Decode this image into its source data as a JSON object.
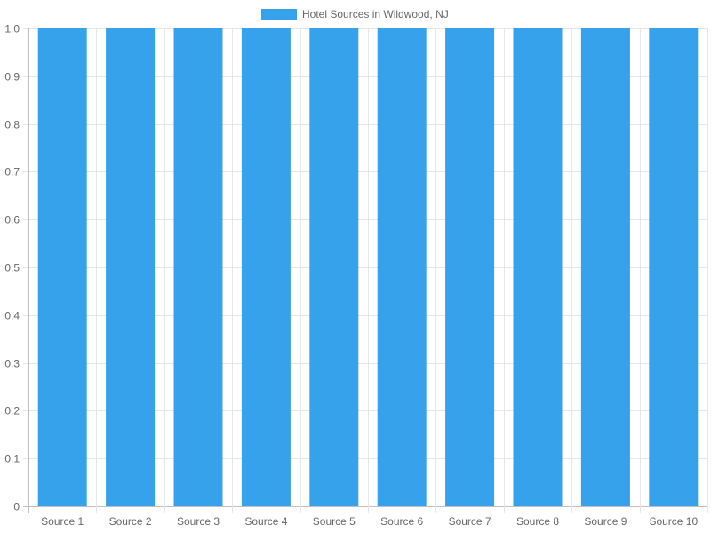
{
  "chart_data": {
    "type": "bar",
    "categories": [
      "Source 1",
      "Source 2",
      "Source 3",
      "Source 4",
      "Source 5",
      "Source 6",
      "Source 7",
      "Source 8",
      "Source 9",
      "Source 10"
    ],
    "series": [
      {
        "name": "Hotel Sources in Wildwood, NJ",
        "values": [
          1,
          1,
          1,
          1,
          1,
          1,
          1,
          1,
          1,
          1
        ],
        "color": "#36a2eb"
      }
    ],
    "ylim": [
      0,
      1
    ],
    "yticks": [
      "0",
      "0.1",
      "0.2",
      "0.3",
      "0.4",
      "0.5",
      "0.6",
      "0.7",
      "0.8",
      "0.9",
      "1.0"
    ],
    "grid": true,
    "legend_position": "top-center"
  }
}
